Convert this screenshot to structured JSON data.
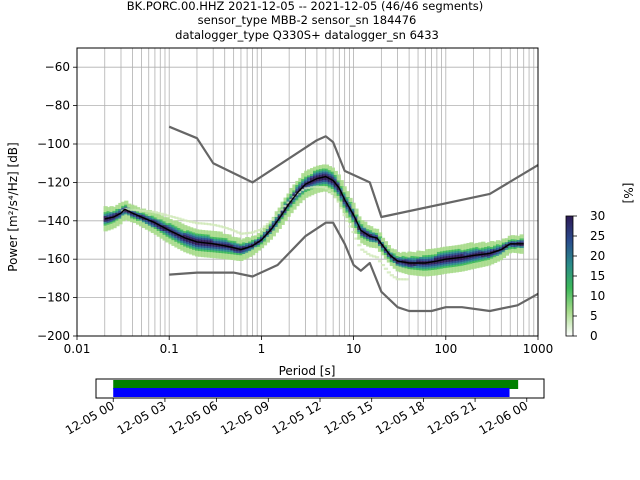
{
  "title_lines": [
    "BK.PORC.00.HHZ   2021-12-05 -- 2021-12-05  (46/46 segments)",
    "sensor_type MBB-2 sensor_sn 184476",
    "datalogger_type Q330S+ datalogger_sn 6433"
  ],
  "chart_data": [
    {
      "type": "heatmap",
      "xlabel": "Period [s]",
      "ylabel": "Power [m²/s⁴/Hz] [dB]",
      "xscale": "log",
      "xlim": [
        0.01,
        1000
      ],
      "ylim": [
        -200,
        -50
      ],
      "x_ticks": [
        {
          "v": 0.01,
          "label": "0.01"
        },
        {
          "v": 0.1,
          "label": "0.1"
        },
        {
          "v": 1,
          "label": "1"
        },
        {
          "v": 10,
          "label": "10"
        },
        {
          "v": 100,
          "label": "100"
        },
        {
          "v": 1000,
          "label": "1000"
        }
      ],
      "y_ticks": [
        {
          "v": -60,
          "label": "−60"
        },
        {
          "v": -80,
          "label": "−80"
        },
        {
          "v": -100,
          "label": "−100"
        },
        {
          "v": -120,
          "label": "−120"
        },
        {
          "v": -140,
          "label": "−140"
        },
        {
          "v": -160,
          "label": "−160"
        },
        {
          "v": -180,
          "label": "−180"
        },
        {
          "v": -200,
          "label": "−200"
        }
      ],
      "grid": true,
      "series": [
        {
          "name": "",
          "color": "#000000",
          "points": [
            [
              0.02,
              -139
            ],
            [
              0.025,
              -138
            ],
            [
              0.03,
              -136
            ],
            [
              0.033,
              -134
            ],
            [
              0.04,
              -136
            ],
            [
              0.05,
              -138
            ],
            [
              0.07,
              -141
            ],
            [
              0.1,
              -145
            ],
            [
              0.15,
              -149
            ],
            [
              0.2,
              -151
            ],
            [
              0.3,
              -152
            ],
            [
              0.4,
              -153
            ],
            [
              0.5,
              -154
            ],
            [
              0.6,
              -155
            ],
            [
              0.7,
              -154
            ],
            [
              0.8,
              -153
            ],
            [
              1,
              -150
            ],
            [
              1.3,
              -144
            ],
            [
              1.6,
              -138
            ],
            [
              2,
              -131
            ],
            [
              2.5,
              -125
            ],
            [
              3,
              -121
            ],
            [
              4,
              -118
            ],
            [
              5,
              -117
            ],
            [
              6,
              -119
            ],
            [
              7,
              -123
            ],
            [
              8,
              -129
            ],
            [
              10,
              -137
            ],
            [
              12,
              -145
            ],
            [
              15,
              -148
            ],
            [
              18,
              -149
            ],
            [
              20,
              -152
            ],
            [
              25,
              -158
            ],
            [
              30,
              -161
            ],
            [
              40,
              -162
            ],
            [
              60,
              -162
            ],
            [
              80,
              -161
            ],
            [
              100,
              -160
            ],
            [
              150,
              -159
            ],
            [
              200,
              -158
            ],
            [
              300,
              -157
            ],
            [
              400,
              -155
            ],
            [
              500,
              -152
            ],
            [
              700,
              -152
            ]
          ]
        },
        {
          "name": "",
          "color": "#666666",
          "points": [
            [
              0.1,
              -91
            ],
            [
              0.2,
              -97
            ],
            [
              0.3,
              -110
            ],
            [
              0.8,
              -120
            ],
            [
              4,
              -98
            ],
            [
              5,
              -96
            ],
            [
              6,
              -99
            ],
            [
              8,
              -114
            ],
            [
              15,
              -120
            ],
            [
              20,
              -138
            ],
            [
              300,
              -126
            ],
            [
              1000,
              -111
            ]
          ]
        },
        {
          "name": "",
          "color": "#666666",
          "points": [
            [
              0.1,
              -168
            ],
            [
              0.2,
              -167
            ],
            [
              0.5,
              -167
            ],
            [
              0.8,
              -169
            ],
            [
              1.5,
              -163
            ],
            [
              3,
              -148
            ],
            [
              5,
              -141
            ],
            [
              6,
              -141
            ],
            [
              8,
              -152
            ],
            [
              10,
              -163
            ],
            [
              12,
              -166
            ],
            [
              15,
              -162
            ],
            [
              20,
              -177
            ],
            [
              30,
              -185
            ],
            [
              40,
              -187
            ],
            [
              70,
              -187
            ],
            [
              100,
              -185
            ],
            [
              150,
              -185
            ],
            [
              300,
              -187
            ],
            [
              600,
              -184
            ],
            [
              1000,
              -178
            ]
          ]
        }
      ]
    },
    {
      "type": "heatmap",
      "colorbar_label": "[%]",
      "range": [
        0,
        30
      ],
      "ticks": [
        {
          "v": 0,
          "label": "0"
        },
        {
          "v": 5,
          "label": "5"
        },
        {
          "v": 10,
          "label": "10"
        },
        {
          "v": 15,
          "label": "15"
        },
        {
          "v": 20,
          "label": "20"
        },
        {
          "v": 25,
          "label": "25"
        },
        {
          "v": 30,
          "label": "30"
        }
      ],
      "colors": [
        "#ffffff",
        "#a8dc8c",
        "#3cb85a",
        "#2a8a8a",
        "#2a4a8c",
        "#2d1a55"
      ]
    },
    {
      "type": "bar",
      "time_labels": [
        "12-05 00",
        "12-05 03",
        "12-05 06",
        "12-05 09",
        "12-05 12",
        "12-05 15",
        "12-05 18",
        "12-05 21",
        "12-06 00"
      ],
      "xlim_hours": [
        -1,
        25
      ],
      "bars": [
        {
          "color": "#008000",
          "start_hour": 0,
          "end_hour": 23.5
        },
        {
          "color": "#0000ff",
          "start_hour": 0,
          "end_hour": 23.0
        }
      ]
    }
  ]
}
